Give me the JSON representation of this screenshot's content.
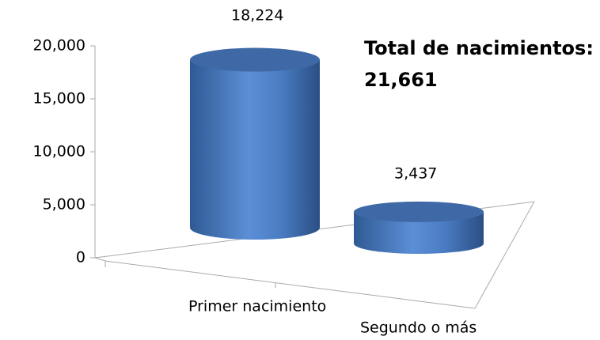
{
  "chart_data": {
    "type": "cylinder",
    "categories": [
      "Primer nacimiento",
      "Segundo o más"
    ],
    "values": [
      18224,
      3437
    ],
    "value_labels": [
      "18,224",
      "3,437"
    ],
    "color": "#4f81bd",
    "ylim": [
      0,
      20000
    ],
    "yticks": [
      0,
      {
        "value": 5000,
        "label": "5,000"
      },
      {
        "value": 10000,
        "label": "10,000"
      },
      {
        "value": 15000,
        "label": "15,000"
      },
      {
        "value": 20000,
        "label": "20,000"
      }
    ],
    "annotations": [
      "Total de nacimientos:",
      "21,661"
    ]
  }
}
